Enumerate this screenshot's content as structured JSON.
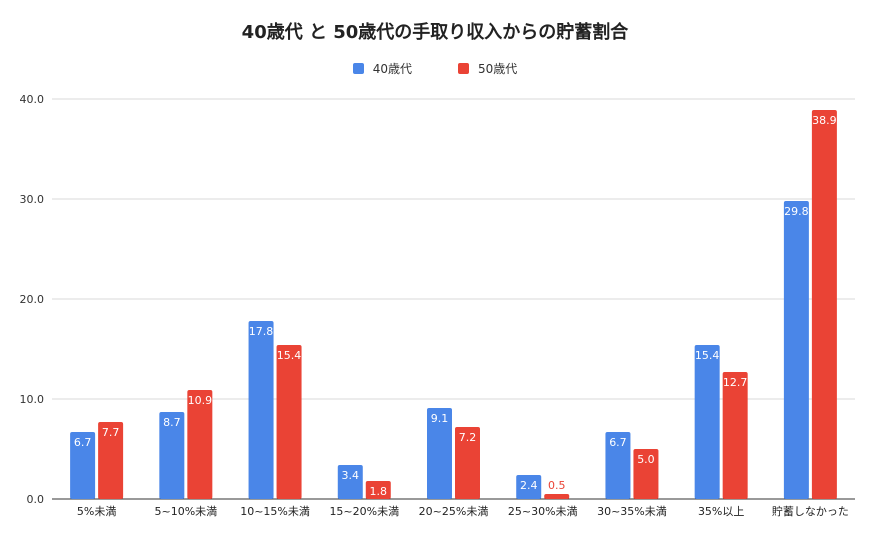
{
  "chart_data": {
    "type": "bar",
    "title": "40歳代 と 50歳代の手取り収入からの貯蓄割合",
    "xlabel": "",
    "ylabel": "",
    "ylim": [
      0,
      40
    ],
    "yticks": [
      "0.0",
      "10.0",
      "20.0",
      "30.0",
      "40.0"
    ],
    "grid": true,
    "legend_position": "top-center",
    "categories": [
      "5%未満",
      "5~10%未満",
      "10~15%未満",
      "15~20%未満",
      "20~25%未満",
      "25~30%未満",
      "30~35%未満",
      "35%以上",
      "貯蓄しなかった"
    ],
    "series": [
      {
        "name": "40歳代",
        "color": "#4a86e8",
        "values": [
          6.7,
          8.7,
          17.8,
          3.4,
          9.1,
          2.4,
          6.7,
          15.4,
          29.8
        ],
        "labels": [
          "6.7",
          "8.7",
          "17.8",
          "3.4",
          "9.1",
          "2.4",
          "6.7",
          "15.4",
          "29.8"
        ]
      },
      {
        "name": "50歳代",
        "color": "#ea4335",
        "values": [
          7.7,
          10.9,
          15.4,
          1.8,
          7.2,
          0.5,
          5.0,
          12.7,
          38.9
        ],
        "labels": [
          "7.7",
          "10.9",
          "15.4",
          "1.8",
          "7.2",
          "0.5",
          "5.0",
          "12.7",
          "38.9"
        ]
      }
    ]
  }
}
